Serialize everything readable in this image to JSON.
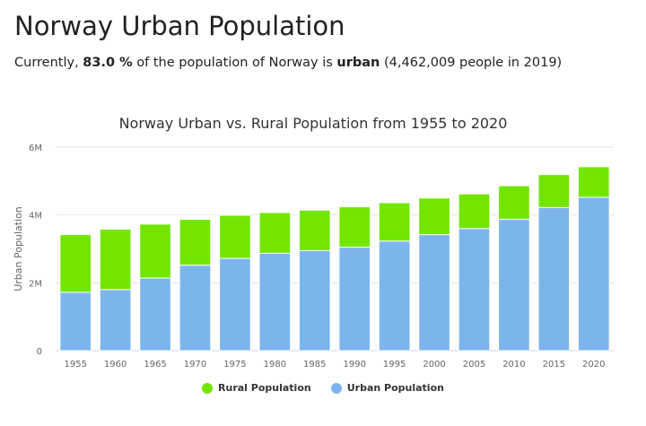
{
  "header": {
    "title": "Norway Urban Population",
    "subtitle_prefix": "Currently, ",
    "subtitle_percent": "83.0 %",
    "subtitle_middle": " of the population of Norway is ",
    "subtitle_urban": "urban",
    "subtitle_suffix": " (4,462,009 people in 2019)"
  },
  "colors": {
    "urban": "#7cb5ec",
    "rural": "#72e600",
    "grid": "#e6e6e6",
    "axis_text": "#666666",
    "title_text": "#333333"
  },
  "chart_data": {
    "type": "bar",
    "stacked": true,
    "title": "Norway Urban vs. Rural Population from 1955 to 2020",
    "xlabel": "",
    "ylabel": "Urban Population",
    "ylim": [
      0,
      6000000
    ],
    "y_ticks": [
      0,
      2000000,
      4000000,
      6000000
    ],
    "y_tick_labels": [
      "0",
      "2M",
      "4M",
      "6M"
    ],
    "grid": true,
    "legend_position": "bottom-center",
    "categories": [
      "1955",
      "1960",
      "1965",
      "1970",
      "1975",
      "1980",
      "1985",
      "1990",
      "1995",
      "2000",
      "2005",
      "2010",
      "2015",
      "2020"
    ],
    "series": [
      {
        "name": "Urban Population",
        "color": "#7cb5ec",
        "values": [
          1720000,
          1800000,
          2140000,
          2520000,
          2720000,
          2870000,
          2950000,
          3050000,
          3230000,
          3420000,
          3600000,
          3870000,
          4220000,
          4520000
        ]
      },
      {
        "name": "Rural Population",
        "color": "#72e600",
        "values": [
          1700000,
          1780000,
          1590000,
          1350000,
          1270000,
          1200000,
          1190000,
          1190000,
          1130000,
          1080000,
          1020000,
          990000,
          970000,
          900000
        ]
      }
    ]
  }
}
